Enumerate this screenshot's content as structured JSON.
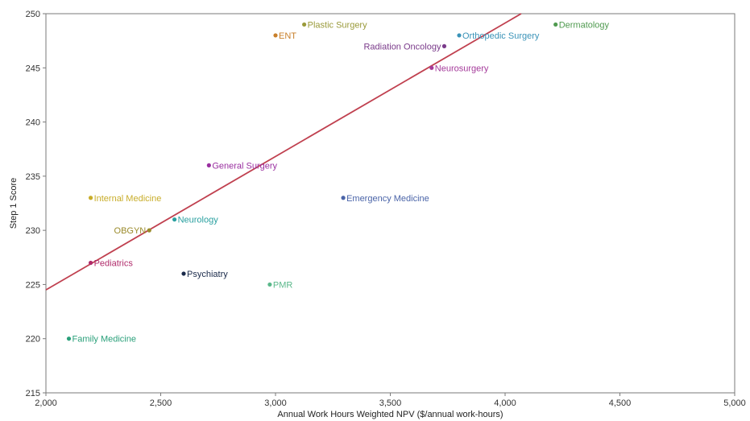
{
  "chart_data": {
    "type": "scatter",
    "title": "",
    "xlabel": "Annual Work Hours Weighted NPV ($/annual work-hours)",
    "ylabel": "Step 1 Score",
    "xlim": [
      2000,
      5000
    ],
    "ylim": [
      215,
      250
    ],
    "x_ticks": [
      2000,
      2500,
      3000,
      3500,
      4000,
      4500,
      5000
    ],
    "x_tick_labels": [
      "2,000",
      "2,500",
      "3,000",
      "3,500",
      "4,000",
      "4,500",
      "5,000"
    ],
    "y_ticks": [
      215,
      220,
      225,
      230,
      235,
      240,
      245,
      250
    ],
    "y_tick_labels": [
      "215",
      "220",
      "225",
      "230",
      "235",
      "240",
      "245",
      "250"
    ],
    "grid": false,
    "legend": "none",
    "trendline": {
      "type": "linear",
      "points": [
        [
          2000,
          224.5
        ],
        [
          4070,
          250
        ]
      ],
      "color": "#c0404f"
    },
    "points": [
      {
        "label": "Plastic Surgery",
        "x": 3125,
        "y": 249,
        "color": "#9a9a3a",
        "label_side": "right"
      },
      {
        "label": "ENT",
        "x": 3000,
        "y": 248,
        "color": "#c87f2a",
        "label_side": "right"
      },
      {
        "label": "Dermatology",
        "x": 4220,
        "y": 249,
        "color": "#4f9a4f",
        "label_side": "right"
      },
      {
        "label": "Orthopedic Surgery",
        "x": 3800,
        "y": 248,
        "color": "#3a93b8",
        "label_side": "right"
      },
      {
        "label": "Radiation Oncology",
        "x": 3735,
        "y": 247,
        "color": "#7a3a8a",
        "label_side": "left"
      },
      {
        "label": "Neurosurgery",
        "x": 3680,
        "y": 245,
        "color": "#a43a9a",
        "label_side": "right"
      },
      {
        "label": "General Surgery",
        "x": 2710,
        "y": 236,
        "color": "#9a2fa0",
        "label_side": "right"
      },
      {
        "label": "Emergency Medicine",
        "x": 3295,
        "y": 233,
        "color": "#4a64a8",
        "label_side": "right"
      },
      {
        "label": "Internal Medicine",
        "x": 2195,
        "y": 233,
        "color": "#c8ad2a",
        "label_side": "right"
      },
      {
        "label": "Neurology",
        "x": 2560,
        "y": 231,
        "color": "#2aa0a0",
        "label_side": "right"
      },
      {
        "label": "OBGYN",
        "x": 2450,
        "y": 230,
        "color": "#9a8a2a",
        "label_side": "left"
      },
      {
        "label": "Pediatrics",
        "x": 2195,
        "y": 227,
        "color": "#b02a6a",
        "label_side": "right"
      },
      {
        "label": "Psychiatry",
        "x": 2600,
        "y": 226,
        "color": "#1a2a4a",
        "label_side": "right"
      },
      {
        "label": "PMR",
        "x": 2975,
        "y": 225,
        "color": "#5ab88a",
        "label_side": "right"
      },
      {
        "label": "Family Medicine",
        "x": 2100,
        "y": 220,
        "color": "#2aa07a",
        "label_side": "right"
      }
    ]
  }
}
